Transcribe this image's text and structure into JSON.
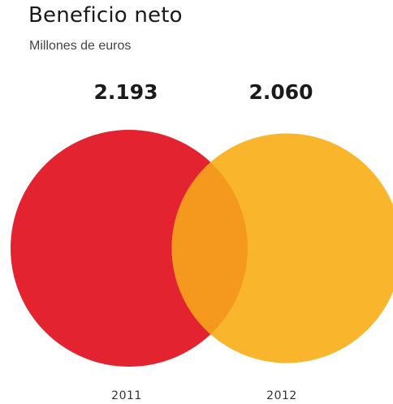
{
  "title": "Beneficio neto",
  "subtitle": "Millones de euros",
  "chart_data": {
    "type": "bubble",
    "title": "Beneficio neto",
    "subtitle": "Millones de euros",
    "categories": [
      "2011",
      "2012"
    ],
    "values": [
      2193,
      2060
    ],
    "value_labels": [
      "2.193",
      "2.060"
    ],
    "colors": [
      "#e3232f",
      "#f9b52b"
    ],
    "overlap_color": "#f4991d"
  }
}
